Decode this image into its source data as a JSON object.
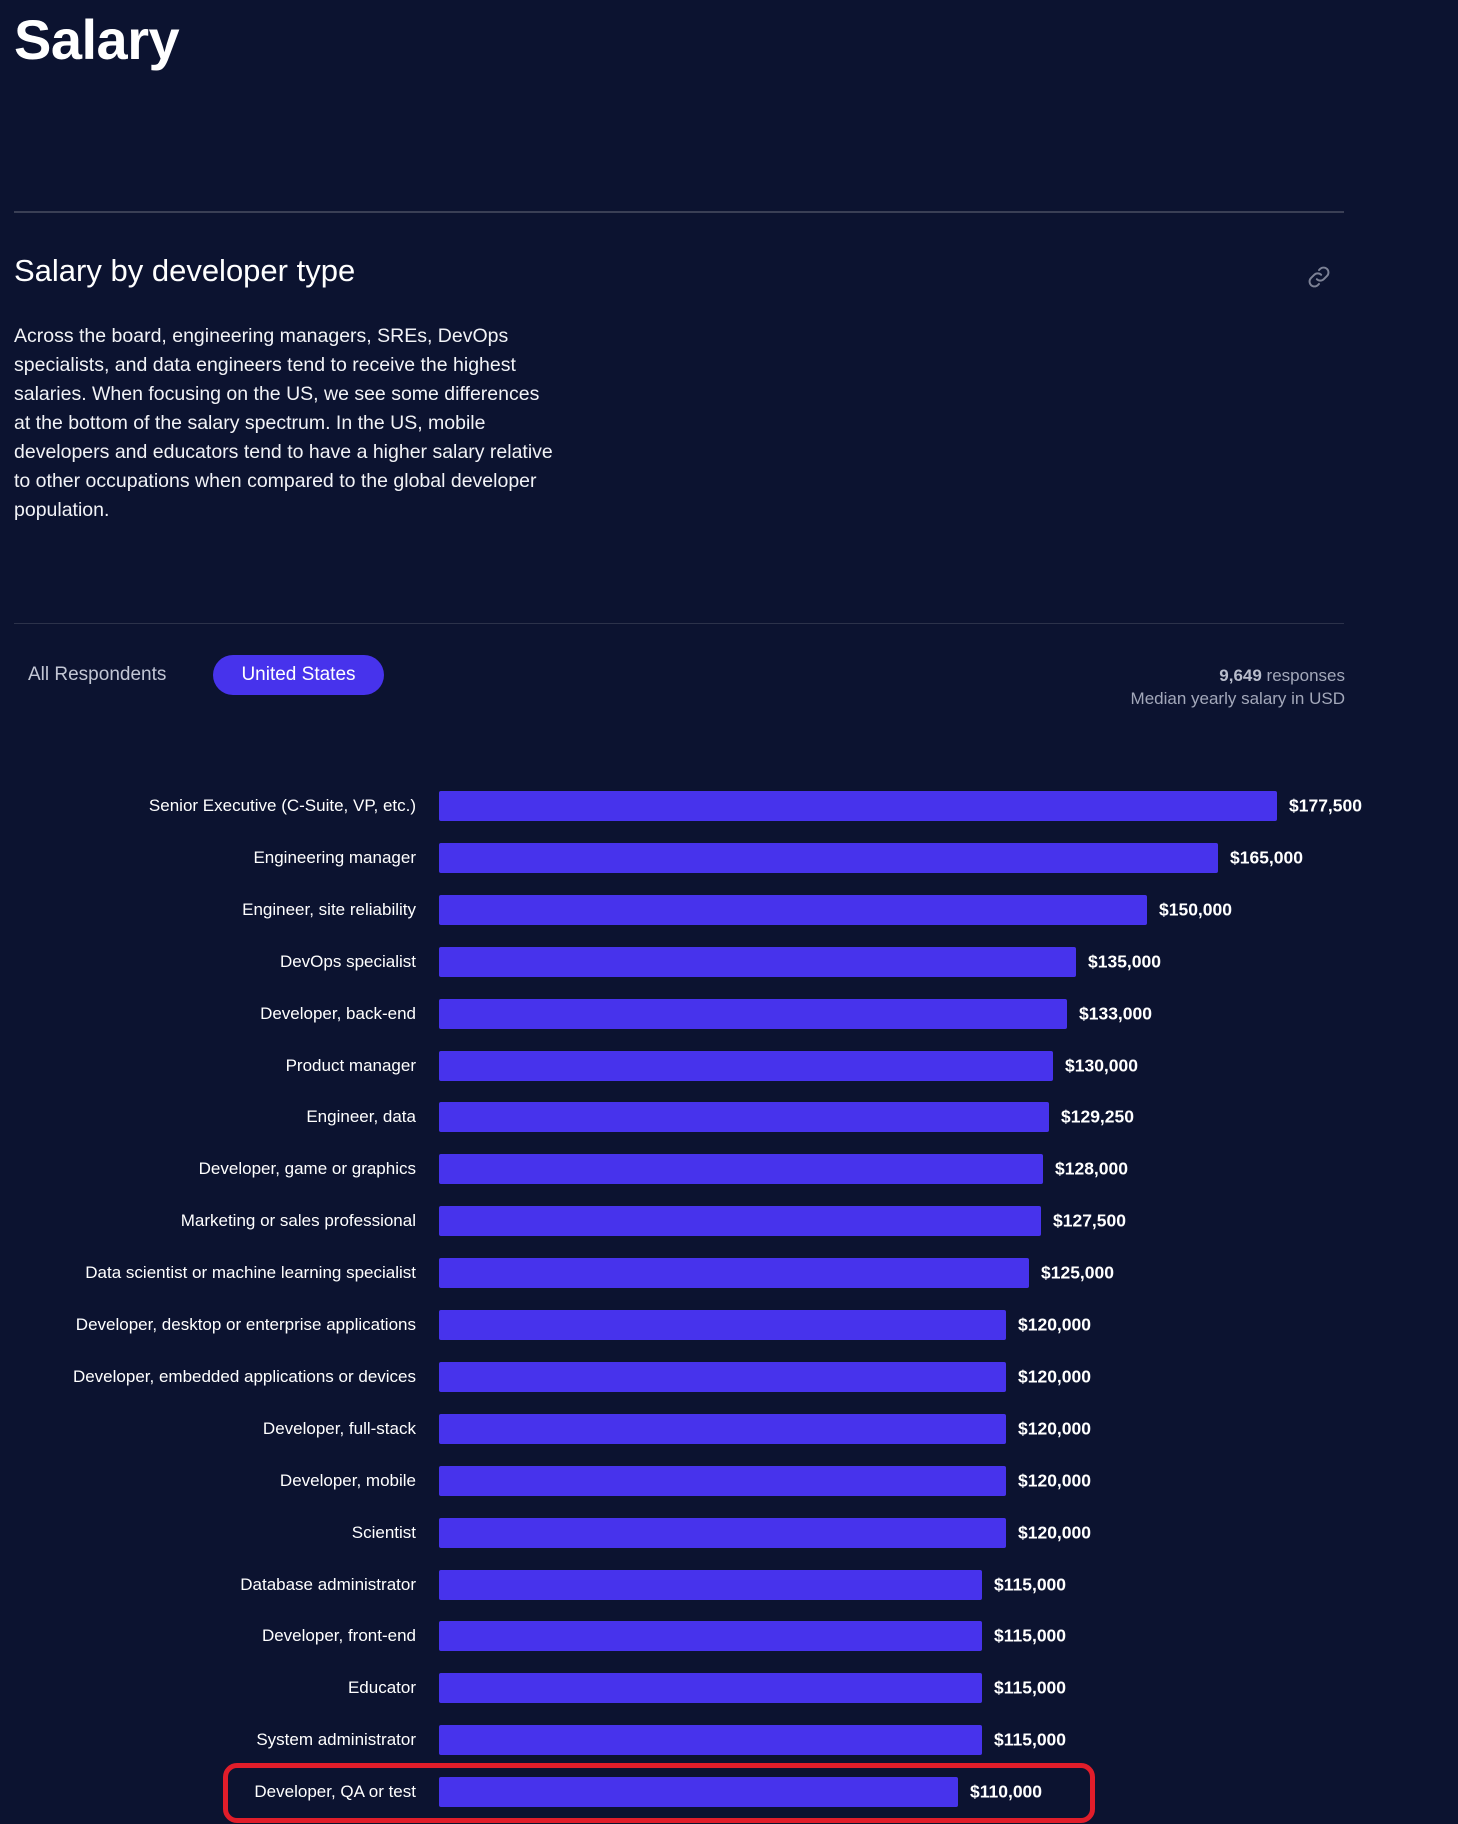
{
  "page": {
    "title": "Salary"
  },
  "section": {
    "title": "Salary by developer type",
    "link_icon": "link-icon",
    "description": "Across the board, engineering managers, SREs, DevOps specialists, and data engineers tend to receive the highest salaries. When focusing on the US, we see some differences at the bottom of the salary spectrum. In the US, mobile developers and educators tend to have a higher salary relative to other occupations when compared to the global developer population."
  },
  "filters": {
    "tabs": [
      {
        "label": "All Respondents",
        "active": false
      },
      {
        "label": "United States",
        "active": true
      }
    ]
  },
  "meta": {
    "responses_count": "9,649",
    "responses_label": " responses",
    "subtitle": "Median yearly salary in USD"
  },
  "colors": {
    "background": "#0c1330",
    "bar": "#4733ec",
    "highlight": "#e11d2a"
  },
  "chart_data": {
    "type": "bar",
    "orientation": "horizontal",
    "title": "Salary by developer type",
    "xlabel": "Median yearly salary in USD",
    "ylabel": "",
    "categories": [
      "Senior Executive (C-Suite, VP, etc.)",
      "Engineering manager",
      "Engineer, site reliability",
      "DevOps specialist",
      "Developer, back-end",
      "Product manager",
      "Engineer, data",
      "Developer, game or graphics",
      "Marketing or sales professional",
      "Data scientist or machine learning specialist",
      "Developer, desktop or enterprise applications",
      "Developer, embedded applications or devices",
      "Developer, full-stack",
      "Developer, mobile",
      "Scientist",
      "Database administrator",
      "Developer, front-end",
      "Educator",
      "System administrator",
      "Developer, QA or test"
    ],
    "values": [
      177500,
      165000,
      150000,
      135000,
      133000,
      130000,
      129250,
      128000,
      127500,
      125000,
      120000,
      120000,
      120000,
      120000,
      120000,
      115000,
      115000,
      115000,
      115000,
      110000
    ],
    "value_labels": [
      "$177,500",
      "$165,000",
      "$150,000",
      "$135,000",
      "$133,000",
      "$130,000",
      "$129,250",
      "$128,000",
      "$127,500",
      "$125,000",
      "$120,000",
      "$120,000",
      "$120,000",
      "$120,000",
      "$120,000",
      "$115,000",
      "$115,000",
      "$115,000",
      "$115,000",
      "$110,000"
    ],
    "xlim": [
      0,
      177500
    ],
    "highlighted_category": "Developer, QA or test"
  }
}
